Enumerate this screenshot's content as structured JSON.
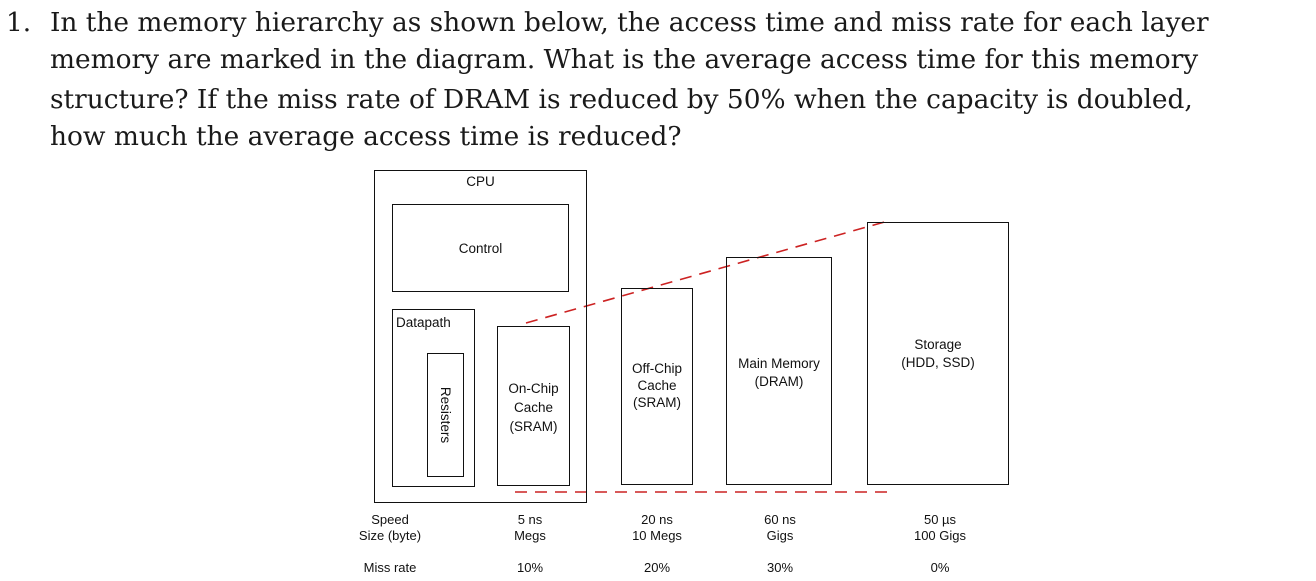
{
  "question": {
    "number": "1.",
    "lines": [
      "In the memory hierarchy as shown below, the access time and miss rate for each layer",
      "memory are marked in the diagram. What is the average access time for this memory",
      "structure? If the miss rate of DRAM is reduced by 50% when the capacity is doubled,",
      "how much the average access time is reduced?"
    ]
  },
  "diagram": {
    "cpu_label": "CPU",
    "control_label": "Control",
    "datapath_label": "Datapath",
    "registers_label": "Resisters",
    "levels": [
      {
        "name_lines": [
          "On-Chip",
          "Cache",
          "(SRAM)"
        ],
        "speed": "5 ns",
        "size": "Megs",
        "miss_rate": "10%"
      },
      {
        "name_lines": [
          "Off-Chip",
          "Cache",
          "(SRAM)"
        ],
        "speed": "20 ns",
        "size": "10 Megs",
        "miss_rate": "20%"
      },
      {
        "name_lines": [
          "Main Memory",
          "(DRAM)"
        ],
        "speed": "60 ns",
        "size": "Gigs",
        "miss_rate": "30%"
      },
      {
        "name_lines": [
          "Storage",
          "(HDD, SSD)"
        ],
        "speed": "50 µs",
        "size": "100 Gigs",
        "miss_rate": "0%"
      }
    ],
    "row_labels": {
      "speed": "Speed",
      "size": "Size (byte)",
      "miss_rate": "Miss rate"
    },
    "colors": {
      "outline": "#111111",
      "dash": "#cc2222"
    }
  }
}
